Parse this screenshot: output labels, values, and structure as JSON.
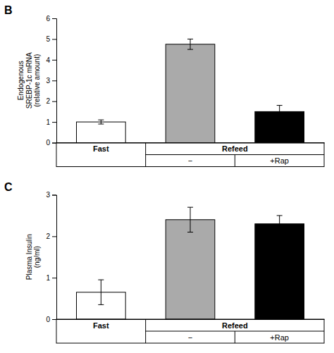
{
  "chart_data": [
    {
      "type": "bar",
      "title": "B",
      "categories": [
        "Fast",
        "−",
        "+Rap"
      ],
      "annotations": [
        "Refeed"
      ],
      "values": [
        1.0,
        4.75,
        1.5
      ],
      "errors": [
        0.1,
        0.25,
        0.3
      ],
      "colors": [
        "white",
        "#aaaaaa",
        "black"
      ],
      "ylabel": "Endogenous\nSREBP-1c mRNA\n(relative amount)",
      "ylim": [
        0,
        6
      ],
      "yticks": [
        0,
        1,
        2,
        3,
        4,
        5,
        6
      ]
    },
    {
      "type": "bar",
      "title": "C",
      "categories": [
        "Fast",
        "−",
        "+Rap"
      ],
      "annotations": [
        "Refeed"
      ],
      "values": [
        0.65,
        2.4,
        2.3
      ],
      "errors": [
        0.3,
        0.3,
        0.2
      ],
      "colors": [
        "white",
        "#aaaaaa",
        "black"
      ],
      "ylabel": "Plasma Insulin\n(ng/ml)",
      "ylim": [
        0,
        3
      ],
      "yticks": [
        0,
        1,
        2,
        3
      ]
    }
  ]
}
